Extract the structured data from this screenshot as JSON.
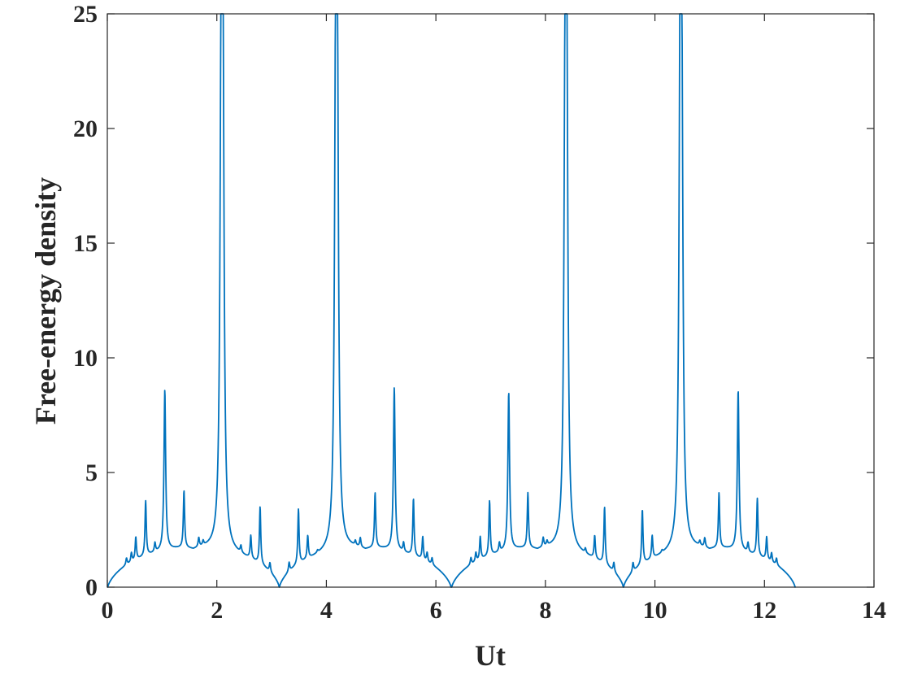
{
  "chart_data": {
    "type": "line",
    "title": "",
    "xlabel": "Ut",
    "ylabel": "Free-energy density",
    "xlim": [
      0,
      14
    ],
    "ylim": [
      0,
      25
    ],
    "xticks": [
      0,
      2,
      4,
      6,
      8,
      10,
      12,
      14
    ],
    "yticks": [
      0,
      5,
      10,
      15,
      20,
      25
    ],
    "xtick_labels": [
      "0",
      "2",
      "4",
      "6",
      "8",
      "10",
      "12",
      "14"
    ],
    "ytick_labels": [
      "0",
      "5",
      "10",
      "15",
      "20",
      "25"
    ],
    "grid": false,
    "line_color": "#0072BD",
    "series": [
      {
        "x_range": [
          0,
          12.566
        ],
        "base_envelope_amplitude": 1.7,
        "base_period": 3.1416,
        "peaks": [
          {
            "x": 0.35,
            "y": 1.9
          },
          {
            "x": 0.44,
            "y": 2.0
          },
          {
            "x": 0.52,
            "y": 2.6
          },
          {
            "x": 0.7,
            "y": 4.0
          },
          {
            "x": 0.87,
            "y": 2.0
          },
          {
            "x": 1.05,
            "y": 8.6
          },
          {
            "x": 1.4,
            "y": 4.1
          },
          {
            "x": 1.67,
            "y": 2.0
          },
          {
            "x": 1.75,
            "y": 1.8
          },
          {
            "x": 2.08,
            "y": 21.3
          },
          {
            "x": 2.11,
            "y": 21.2
          },
          {
            "x": 2.44,
            "y": 1.9
          },
          {
            "x": 2.62,
            "y": 2.6
          },
          {
            "x": 2.79,
            "y": 4.1
          },
          {
            "x": 2.97,
            "y": 2.0
          },
          {
            "x": 3.32,
            "y": 2.0
          },
          {
            "x": 3.49,
            "y": 4.0
          },
          {
            "x": 3.66,
            "y": 2.6
          },
          {
            "x": 3.84,
            "y": 1.7
          },
          {
            "x": 4.17,
            "y": 20.5
          },
          {
            "x": 4.2,
            "y": 20.6
          },
          {
            "x": 4.53,
            "y": 1.8
          },
          {
            "x": 4.62,
            "y": 2.0
          },
          {
            "x": 4.89,
            "y": 4.0
          },
          {
            "x": 5.24,
            "y": 8.7
          },
          {
            "x": 5.41,
            "y": 2.0
          },
          {
            "x": 5.59,
            "y": 4.1
          },
          {
            "x": 5.76,
            "y": 2.6
          },
          {
            "x": 5.84,
            "y": 2.0
          },
          {
            "x": 5.93,
            "y": 1.9
          },
          {
            "x": 6.64,
            "y": 1.9
          },
          {
            "x": 6.73,
            "y": 2.0
          },
          {
            "x": 6.81,
            "y": 2.6
          },
          {
            "x": 6.98,
            "y": 4.0
          },
          {
            "x": 7.16,
            "y": 2.0
          },
          {
            "x": 7.33,
            "y": 8.5
          },
          {
            "x": 7.68,
            "y": 4.0
          },
          {
            "x": 7.96,
            "y": 2.0
          },
          {
            "x": 8.03,
            "y": 1.8
          },
          {
            "x": 8.36,
            "y": 20.3
          },
          {
            "x": 8.39,
            "y": 19.9
          },
          {
            "x": 8.73,
            "y": 1.8
          },
          {
            "x": 8.9,
            "y": 2.6
          },
          {
            "x": 9.08,
            "y": 4.1
          },
          {
            "x": 9.25,
            "y": 2.0
          },
          {
            "x": 9.6,
            "y": 2.0
          },
          {
            "x": 9.77,
            "y": 4.0
          },
          {
            "x": 9.95,
            "y": 2.6
          },
          {
            "x": 10.13,
            "y": 1.7
          },
          {
            "x": 10.46,
            "y": 21.0
          },
          {
            "x": 10.49,
            "y": 19.6
          },
          {
            "x": 10.82,
            "y": 1.8
          },
          {
            "x": 10.91,
            "y": 2.0
          },
          {
            "x": 11.17,
            "y": 4.0
          },
          {
            "x": 11.52,
            "y": 8.6
          },
          {
            "x": 11.7,
            "y": 2.0
          },
          {
            "x": 11.87,
            "y": 4.1
          },
          {
            "x": 12.04,
            "y": 2.6
          },
          {
            "x": 12.13,
            "y": 2.0
          },
          {
            "x": 12.22,
            "y": 1.9
          }
        ]
      }
    ]
  }
}
